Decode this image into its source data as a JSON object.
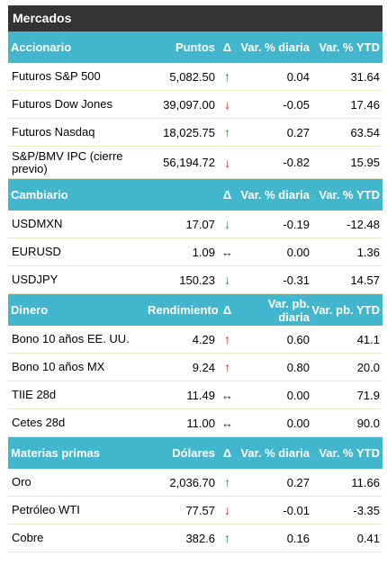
{
  "title": "Mercados",
  "sections": [
    {
      "header": {
        "name": "Accionario",
        "col2": "Puntos",
        "col3": "Δ",
        "col4": "Var. % diaria",
        "col5": "Var. % YTD"
      },
      "rows": [
        {
          "name": "Futuros S&P 500",
          "value": "5,082.50",
          "dir": "up",
          "arrow": "↑",
          "daily": "0.04",
          "ytd": "31.64"
        },
        {
          "name": "Futuros Dow Jones",
          "value": "39,097.00",
          "dir": "down",
          "arrow": "↓",
          "daily": "-0.05",
          "ytd": "17.46"
        },
        {
          "name": "Futuros Nasdaq",
          "value": "18,025.75",
          "dir": "up",
          "arrow": "↑",
          "daily": "0.27",
          "ytd": "63.54"
        },
        {
          "name": "S&P/BMV IPC (cierre previo)",
          "value": "56,194.72",
          "dir": "down",
          "arrow": "↓",
          "daily": "-0.82",
          "ytd": "15.95"
        }
      ]
    },
    {
      "header": {
        "name": "Cambiario",
        "col2": "",
        "col3": "Δ",
        "col4": "Var. % diaria",
        "col5": "Var. % YTD"
      },
      "rows": [
        {
          "name": "USDMXN",
          "value": "17.07",
          "dir": "up",
          "arrow": "↓",
          "daily": "-0.19",
          "ytd": "-12.48"
        },
        {
          "name": "EURUSD",
          "value": "1.09",
          "dir": "flat",
          "arrow": "↔",
          "daily": "0.00",
          "ytd": "1.36"
        },
        {
          "name": "USDJPY",
          "value": "150.23",
          "dir": "up",
          "arrow": "↓",
          "daily": "-0.31",
          "ytd": "14.57"
        }
      ]
    },
    {
      "header": {
        "name": "Dinero",
        "col2": "Rendimiento",
        "col3": "Δ",
        "col4": "Var. pb. diaria",
        "col5": "Var. pb. YTD"
      },
      "rows": [
        {
          "name": "Bono 10 años EE. UU.",
          "value": "4.29",
          "dir": "down",
          "arrow": "↑",
          "daily": "0.60",
          "ytd": "41.1"
        },
        {
          "name": "Bono 10 años MX",
          "value": "9.24",
          "dir": "down",
          "arrow": "↑",
          "daily": "0.80",
          "ytd": "20.0"
        },
        {
          "name": "TIIE 28d",
          "value": "11.49",
          "dir": "flat",
          "arrow": "↔",
          "daily": "0.00",
          "ytd": "71.9"
        },
        {
          "name": "Cetes 28d",
          "value": "11.00",
          "dir": "flat",
          "arrow": "↔",
          "daily": "0.00",
          "ytd": "90.0"
        }
      ]
    },
    {
      "header": {
        "name": "Materias primas",
        "col2": "Dólares",
        "col3": "Δ",
        "col4": "Var. % diaria",
        "col5": "Var. % YTD"
      },
      "rows": [
        {
          "name": "Oro",
          "value": "2,036.70",
          "dir": "up",
          "arrow": "↑",
          "daily": "0.27",
          "ytd": "11.66"
        },
        {
          "name": "Petróleo WTI",
          "value": "77.57",
          "dir": "down",
          "arrow": "↓",
          "daily": "-0.01",
          "ytd": "-3.35"
        },
        {
          "name": "Cobre",
          "value": "382.6",
          "dir": "up",
          "arrow": "↑",
          "daily": "0.16",
          "ytd": "0.41"
        }
      ]
    }
  ]
}
